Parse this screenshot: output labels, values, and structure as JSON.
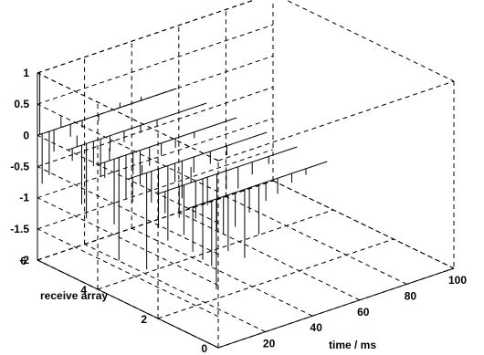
{
  "chart_data": {
    "type": "line",
    "title": "",
    "xlabel": "time / ms",
    "ylabel": "receive array",
    "zlabel": "",
    "xlim": [
      0,
      100
    ],
    "ylim": [
      0,
      6
    ],
    "zlim": [
      -2,
      1
    ],
    "x_ticks": [
      "0",
      "20",
      "40",
      "60",
      "80",
      "100"
    ],
    "y_ticks": [
      "0",
      "2",
      "4",
      "6"
    ],
    "z_ticks": [
      "-2",
      "-1.5",
      "-1",
      "-0.5",
      "0",
      "0.5",
      "1"
    ],
    "grid": true,
    "box": "dashed",
    "series": [
      {
        "receiver": 1,
        "x_range": [
          0,
          59
        ],
        "spikes": [
          [
            2,
            -0.72
          ],
          [
            10,
            -1.05
          ],
          [
            12,
            -1.45
          ],
          [
            15,
            -0.6
          ],
          [
            17,
            -0.9
          ],
          [
            20,
            -0.55
          ],
          [
            24,
            -1.1
          ],
          [
            26,
            -0.4
          ],
          [
            30,
            -0.8
          ],
          [
            33,
            -0.3
          ],
          [
            38,
            -0.25
          ],
          [
            44,
            -0.15
          ],
          [
            50,
            -0.1
          ]
        ]
      },
      {
        "receiver": 2,
        "x_range": [
          0,
          59
        ],
        "spikes": [
          [
            3,
            -0.35
          ],
          [
            9,
            -0.5
          ],
          [
            11,
            -0.8
          ],
          [
            14,
            0.25
          ],
          [
            16,
            -0.6
          ],
          [
            19,
            -1.3
          ],
          [
            21,
            -0.45
          ],
          [
            25,
            -0.9
          ],
          [
            29,
            -0.3
          ],
          [
            34,
            -0.35
          ],
          [
            40,
            -0.2
          ],
          [
            47,
            -0.12
          ]
        ]
      },
      {
        "receiver": 3,
        "x_range": [
          0,
          59
        ],
        "spikes": [
          [
            2,
            -0.4
          ],
          [
            6,
            0.15
          ],
          [
            8,
            -1.55
          ],
          [
            10,
            -0.5
          ],
          [
            13,
            -0.95
          ],
          [
            17,
            -1.2
          ],
          [
            20,
            -0.3
          ],
          [
            23,
            -0.6
          ],
          [
            28,
            -0.25
          ],
          [
            35,
            -0.2
          ],
          [
            42,
            -0.15
          ]
        ]
      },
      {
        "receiver": 4,
        "x_range": [
          0,
          59
        ],
        "spikes": [
          [
            3,
            -0.25
          ],
          [
            5,
            0.2
          ],
          [
            7,
            -1.05
          ],
          [
            9,
            -1.65
          ],
          [
            12,
            -0.7
          ],
          [
            15,
            -0.35
          ],
          [
            18,
            -0.55
          ],
          [
            22,
            -0.3
          ],
          [
            27,
            -0.2
          ],
          [
            33,
            -0.15
          ],
          [
            41,
            -0.1
          ]
        ]
      },
      {
        "receiver": 5,
        "x_range": [
          0,
          59
        ],
        "spikes": [
          [
            2,
            -0.2
          ],
          [
            4,
            0.18
          ],
          [
            6,
            -0.95
          ],
          [
            8,
            -1.2
          ],
          [
            11,
            -0.4
          ],
          [
            14,
            -0.6
          ],
          [
            18,
            -0.25
          ],
          [
            24,
            -0.18
          ],
          [
            31,
            -0.12
          ],
          [
            38,
            -0.1
          ]
        ]
      },
      {
        "receiver": 6,
        "x_range": [
          0,
          59
        ],
        "spikes": [
          [
            1,
            1.0
          ],
          [
            2,
            -0.8
          ],
          [
            5,
            -0.7
          ],
          [
            7,
            -0.35
          ],
          [
            10,
            0.18
          ],
          [
            14,
            -0.2
          ],
          [
            19,
            -0.12
          ],
          [
            26,
            -0.1
          ],
          [
            35,
            0.08
          ],
          [
            44,
            0.06
          ]
        ]
      }
    ]
  }
}
